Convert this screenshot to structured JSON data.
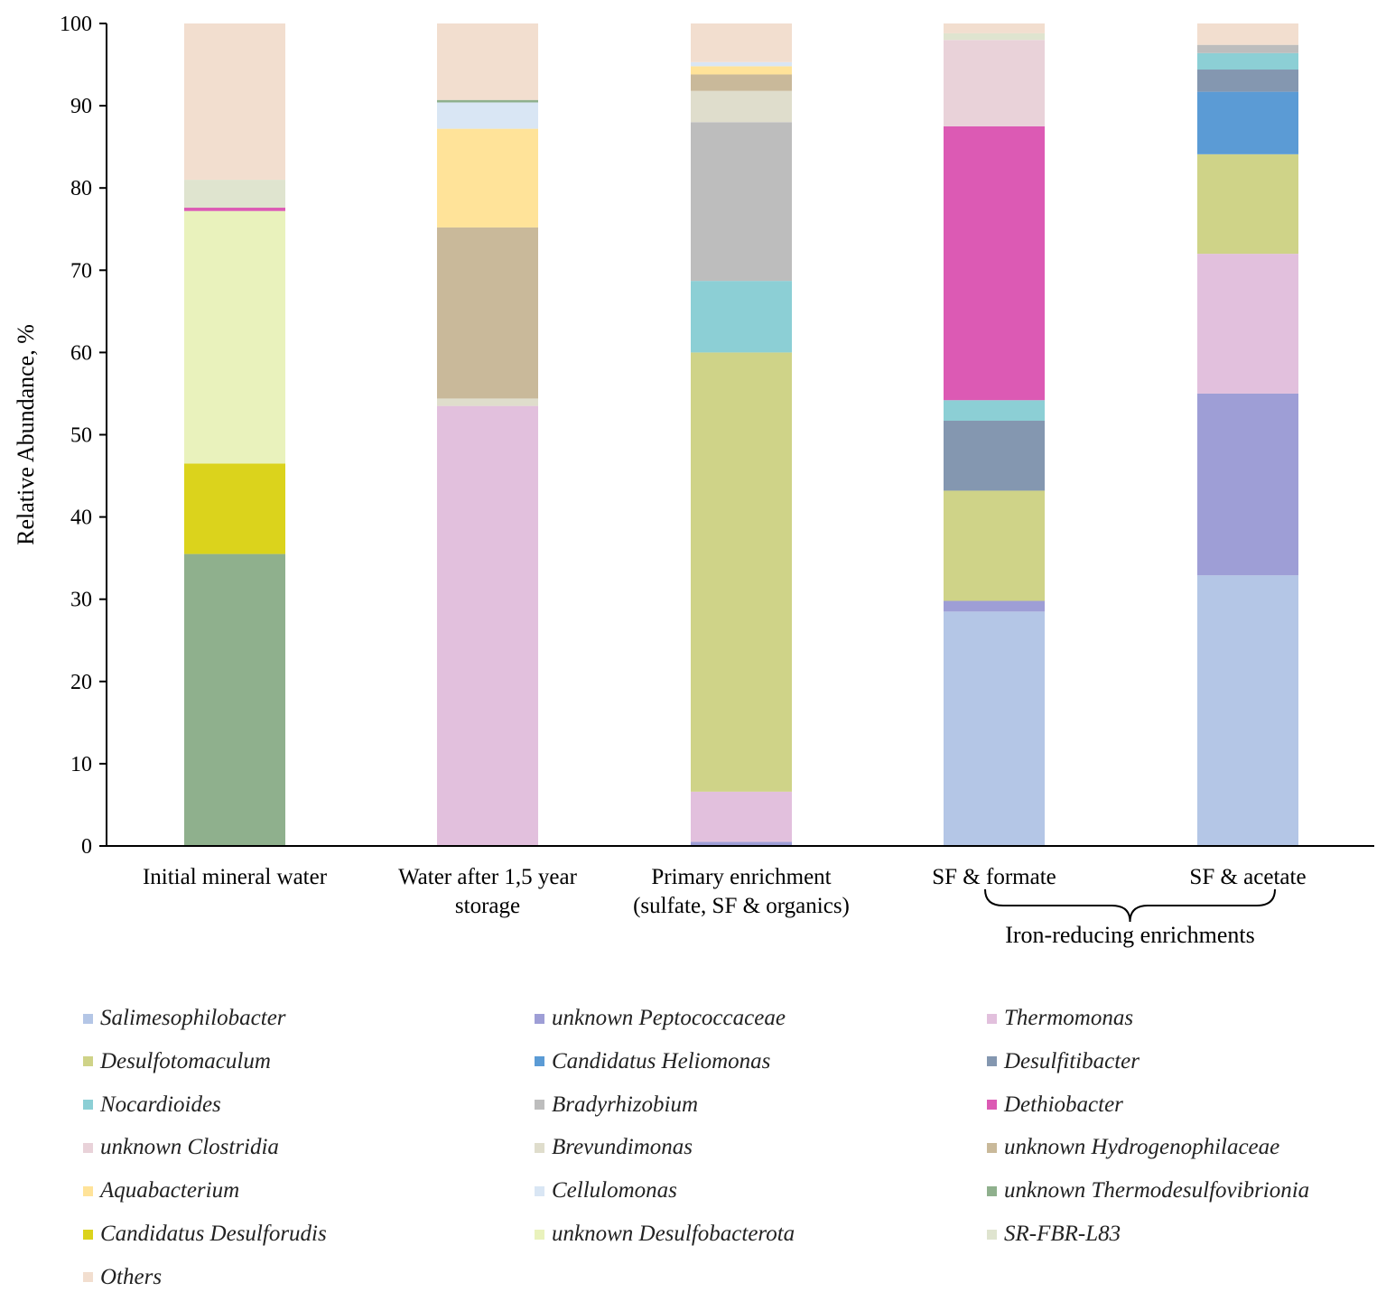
{
  "chart_data": {
    "type": "bar",
    "stacked": true,
    "ylabel": "Relative Abundance, %",
    "ylim": [
      0,
      100
    ],
    "yticks": [
      0,
      10,
      20,
      30,
      40,
      50,
      60,
      70,
      80,
      90,
      100
    ],
    "categories": [
      [
        "Initial mineral water"
      ],
      [
        "Water after 1,5 year",
        "storage"
      ],
      [
        "Primary enrichment",
        "(sulfate, SF & organics)"
      ],
      [
        "SF & formate"
      ],
      [
        "SF & acetate"
      ]
    ],
    "group_annotation": {
      "label": "Iron-reducing enrichments",
      "covers": [
        3,
        4
      ]
    },
    "legend_placement": "bottom",
    "series": [
      {
        "name": "Salimesophilobacter",
        "color": "#b4c6e6",
        "values": [
          0,
          0,
          0,
          28.5,
          32.9
        ]
      },
      {
        "name": "unknown Peptococcaceae",
        "color": "#9e9ed6",
        "values": [
          0,
          0,
          0.5,
          1.3,
          22.1
        ]
      },
      {
        "name": "Thermomonas",
        "color": "#e2c0dd",
        "values": [
          0,
          53.5,
          6.1,
          0,
          17.0
        ]
      },
      {
        "name": "Desulfotomaculum",
        "color": "#cfd388",
        "values": [
          0,
          0,
          53.4,
          13.4,
          12.1
        ]
      },
      {
        "name": "Candidatus Heliomonas",
        "color": "#5b9bd5",
        "values": [
          0,
          0,
          0,
          0,
          7.6
        ]
      },
      {
        "name": "Desulfitibacter",
        "color": "#8497b0",
        "values": [
          0,
          0,
          0,
          8.5,
          2.7
        ]
      },
      {
        "name": "Nocardioides",
        "color": "#8ccfd5",
        "values": [
          0,
          0,
          8.7,
          2.5,
          2.0
        ]
      },
      {
        "name": "Bradyrhizobium",
        "color": "#bdbdbd",
        "values": [
          0,
          0,
          19.3,
          0,
          1.0
        ]
      },
      {
        "name": "Dethiobacter",
        "color": "#dc5ab4",
        "values": [
          0,
          0,
          0,
          33.3,
          0
        ]
      },
      {
        "name": "unknown Clostridia",
        "color": "#e9d2d9",
        "values": [
          0,
          0,
          0,
          10.5,
          0
        ]
      },
      {
        "name": "Brevundimonas",
        "color": "#dfddcc",
        "values": [
          0,
          0.9,
          3.8,
          0,
          0
        ]
      },
      {
        "name": "unknown Hydrogenophilaceae",
        "color": "#c9b99a",
        "values": [
          0,
          20.8,
          2.0,
          0,
          0
        ]
      },
      {
        "name": "Aquabacterium",
        "color": "#ffe399",
        "values": [
          0,
          12.0,
          1.0,
          0,
          0
        ]
      },
      {
        "name": "Cellulomonas",
        "color": "#d9e6f4",
        "values": [
          0,
          3.2,
          0.5,
          0,
          0
        ]
      },
      {
        "name": "unknown Thermodesulfovibrionia",
        "color": "#8fb08d",
        "values": [
          35.5,
          0.3,
          0,
          0,
          0
        ]
      },
      {
        "name": "Candidatus Desulforudis",
        "color": "#dbd31c",
        "values": [
          11.0,
          0,
          0,
          0,
          0
        ]
      },
      {
        "name": "unknown Desulfobacterota",
        "color": "#e9f2bc",
        "values": [
          30.7,
          0,
          0,
          0,
          0
        ]
      },
      {
        "name": "SR-FBR-L83",
        "color": "#dfe4cf",
        "values": [
          3.8,
          0,
          0,
          0.8,
          0
        ]
      },
      {
        "name": "Others",
        "color": "#f2decf",
        "values": [
          19.0,
          9.3,
          4.7,
          1.2,
          2.6
        ]
      }
    ],
    "extra_segments": [
      {
        "category": 0,
        "from": 77.2,
        "to": 77.6,
        "color": "#dc5ab4"
      }
    ]
  }
}
